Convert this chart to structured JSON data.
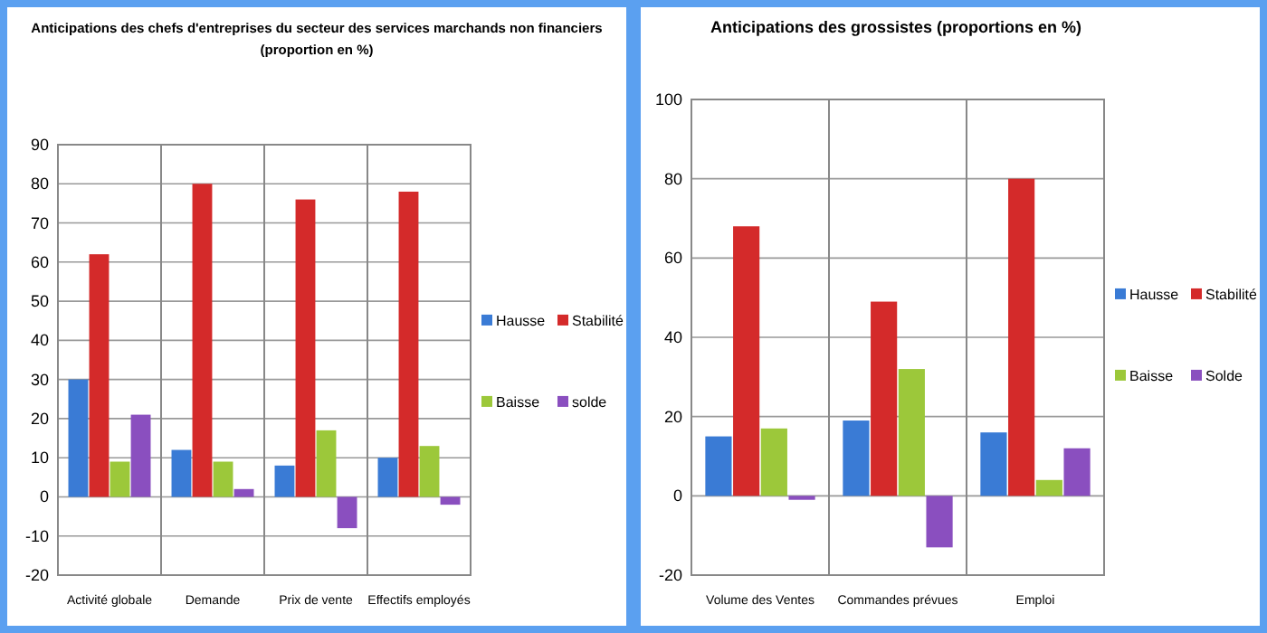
{
  "chart_data": [
    {
      "type": "bar",
      "title": "Anticipations des chefs d'entreprises  du secteur des services marchands non financiers\n(proportion  en %)",
      "categories": [
        "Activité globale",
        "Demande",
        "Prix de vente",
        "Effectifs employés"
      ],
      "series": [
        {
          "name": "Hausse",
          "color": "#3a7bd5",
          "values": [
            30,
            12,
            8,
            10
          ]
        },
        {
          "name": "Stabilité",
          "color": "#d42a2a",
          "values": [
            62,
            80,
            76,
            78
          ]
        },
        {
          "name": "Baisse",
          "color": "#9cc83a",
          "values": [
            9,
            9,
            17,
            13
          ]
        },
        {
          "name": "solde",
          "color": "#8a4fbf",
          "values": [
            21,
            2,
            -8,
            -2
          ]
        }
      ],
      "ylim": [
        -20,
        90
      ],
      "yticks": [
        -20,
        -10,
        0,
        10,
        20,
        30,
        40,
        50,
        60,
        70,
        80,
        90
      ],
      "grid": "y",
      "legend": "right"
    },
    {
      "type": "bar",
      "title": "Anticipations des grossistes (proportions  en %)",
      "categories": [
        "Volume des Ventes",
        "Commandes prévues",
        "Emploi"
      ],
      "series": [
        {
          "name": "Hausse",
          "color": "#3a7bd5",
          "values": [
            15,
            19,
            16
          ]
        },
        {
          "name": "Stabilité",
          "color": "#d42a2a",
          "values": [
            68,
            49,
            80
          ]
        },
        {
          "name": "Baisse",
          "color": "#9cc83a",
          "values": [
            17,
            32,
            4
          ]
        },
        {
          "name": "Solde",
          "color": "#8a4fbf",
          "values": [
            -1,
            -13,
            12
          ]
        }
      ],
      "ylim": [
        -20,
        100
      ],
      "yticks": [
        -20,
        0,
        20,
        40,
        60,
        80,
        100
      ],
      "grid": "y",
      "legend": "right"
    }
  ]
}
